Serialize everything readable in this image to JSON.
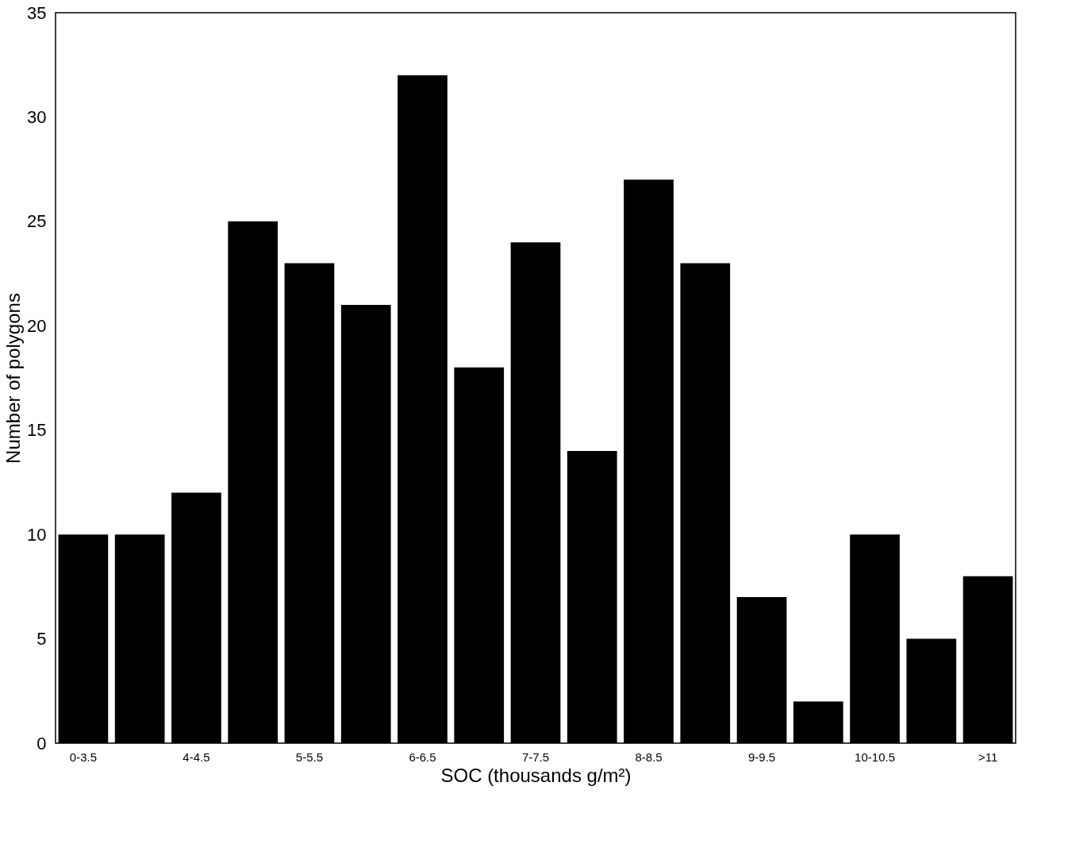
{
  "chart_data": {
    "type": "bar",
    "xlabel": "SOC (thousands g/m²)",
    "ylabel": "Number of polygons",
    "categories": [
      "0-3.5",
      null,
      "4-4.5",
      null,
      "5-5.5",
      null,
      "6-6.5",
      null,
      "7-7.5",
      null,
      "8-8.5",
      null,
      "9-9.5",
      null,
      "10-10.5",
      null,
      ">11"
    ],
    "values": [
      10,
      10,
      12,
      25,
      23,
      21,
      32,
      18,
      24,
      14,
      27,
      23,
      7,
      2,
      10,
      5,
      8
    ],
    "color": "#000000",
    "ylim": [
      0,
      35
    ],
    "yticks": [
      0,
      5,
      10,
      15,
      20,
      25,
      30,
      35
    ],
    "grid": false
  }
}
